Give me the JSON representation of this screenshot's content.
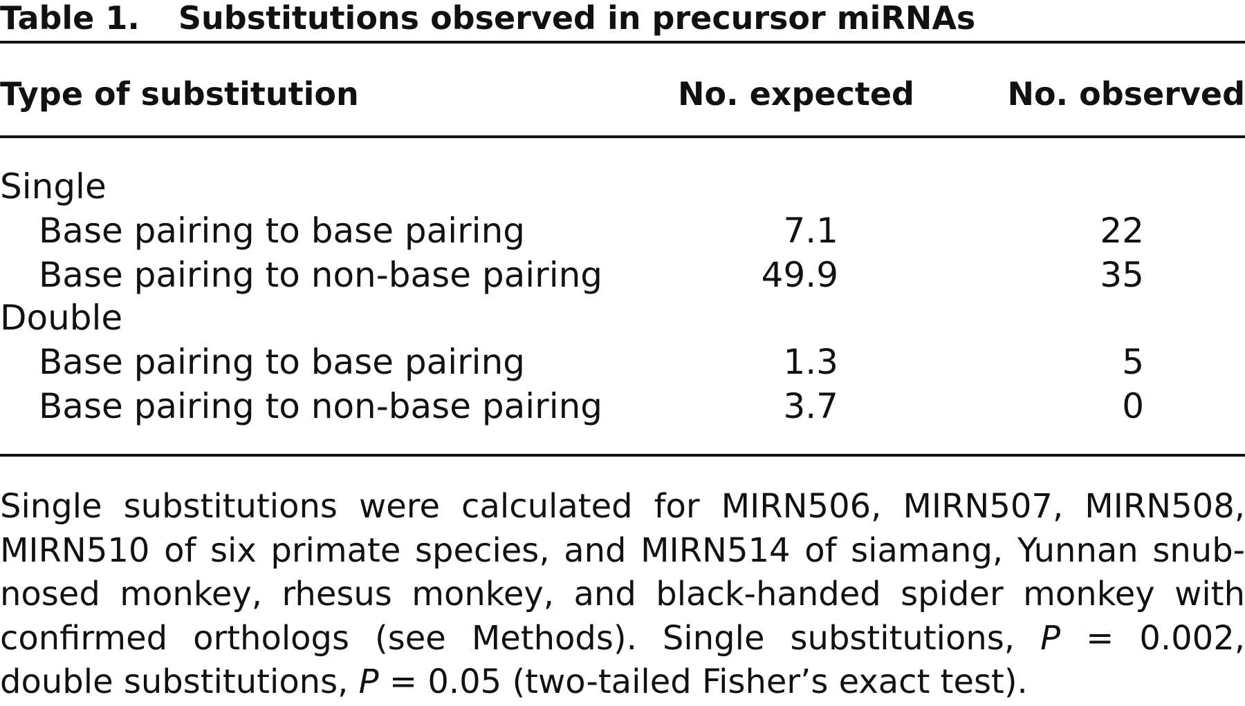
{
  "table": {
    "label": "Table 1.",
    "title": "Substitutions observed in precursor miRNAs",
    "headers": {
      "type": "Type of substitution",
      "expected": "No. expected",
      "observed": "No. observed"
    },
    "groups": [
      {
        "name": "Single",
        "rows": [
          {
            "type": "Base pairing to base pairing",
            "expected": "7.1",
            "observed": "22"
          },
          {
            "type": "Base pairing to non-base pairing",
            "expected": "49.9",
            "observed": "35"
          }
        ]
      },
      {
        "name": "Double",
        "rows": [
          {
            "type": "Base pairing to base pairing",
            "expected": "1.3",
            "observed": "5"
          },
          {
            "type": "Base pairing to non-base pairing",
            "expected": "3.7",
            "observed": "0"
          }
        ]
      }
    ],
    "footnote": {
      "line1": "Single substitutions were calculated for MIRN506, MIRN507, MIRN508,",
      "line2": "MIRN510 of six primate species, and MIRN514 of siamang, Yunnan snub-",
      "line3": "nosed monkey, rhesus monkey, and black-handed spider monkey with",
      "line4_pre": "confirmed orthologs (see Methods). Single substitutions, ",
      "p_symbol": "P",
      "line4_post": " = 0.002,",
      "line5_pre": "double substitutions, ",
      "line5_post": " = 0.05 (two-tailed Fisher’s exact test)."
    }
  }
}
